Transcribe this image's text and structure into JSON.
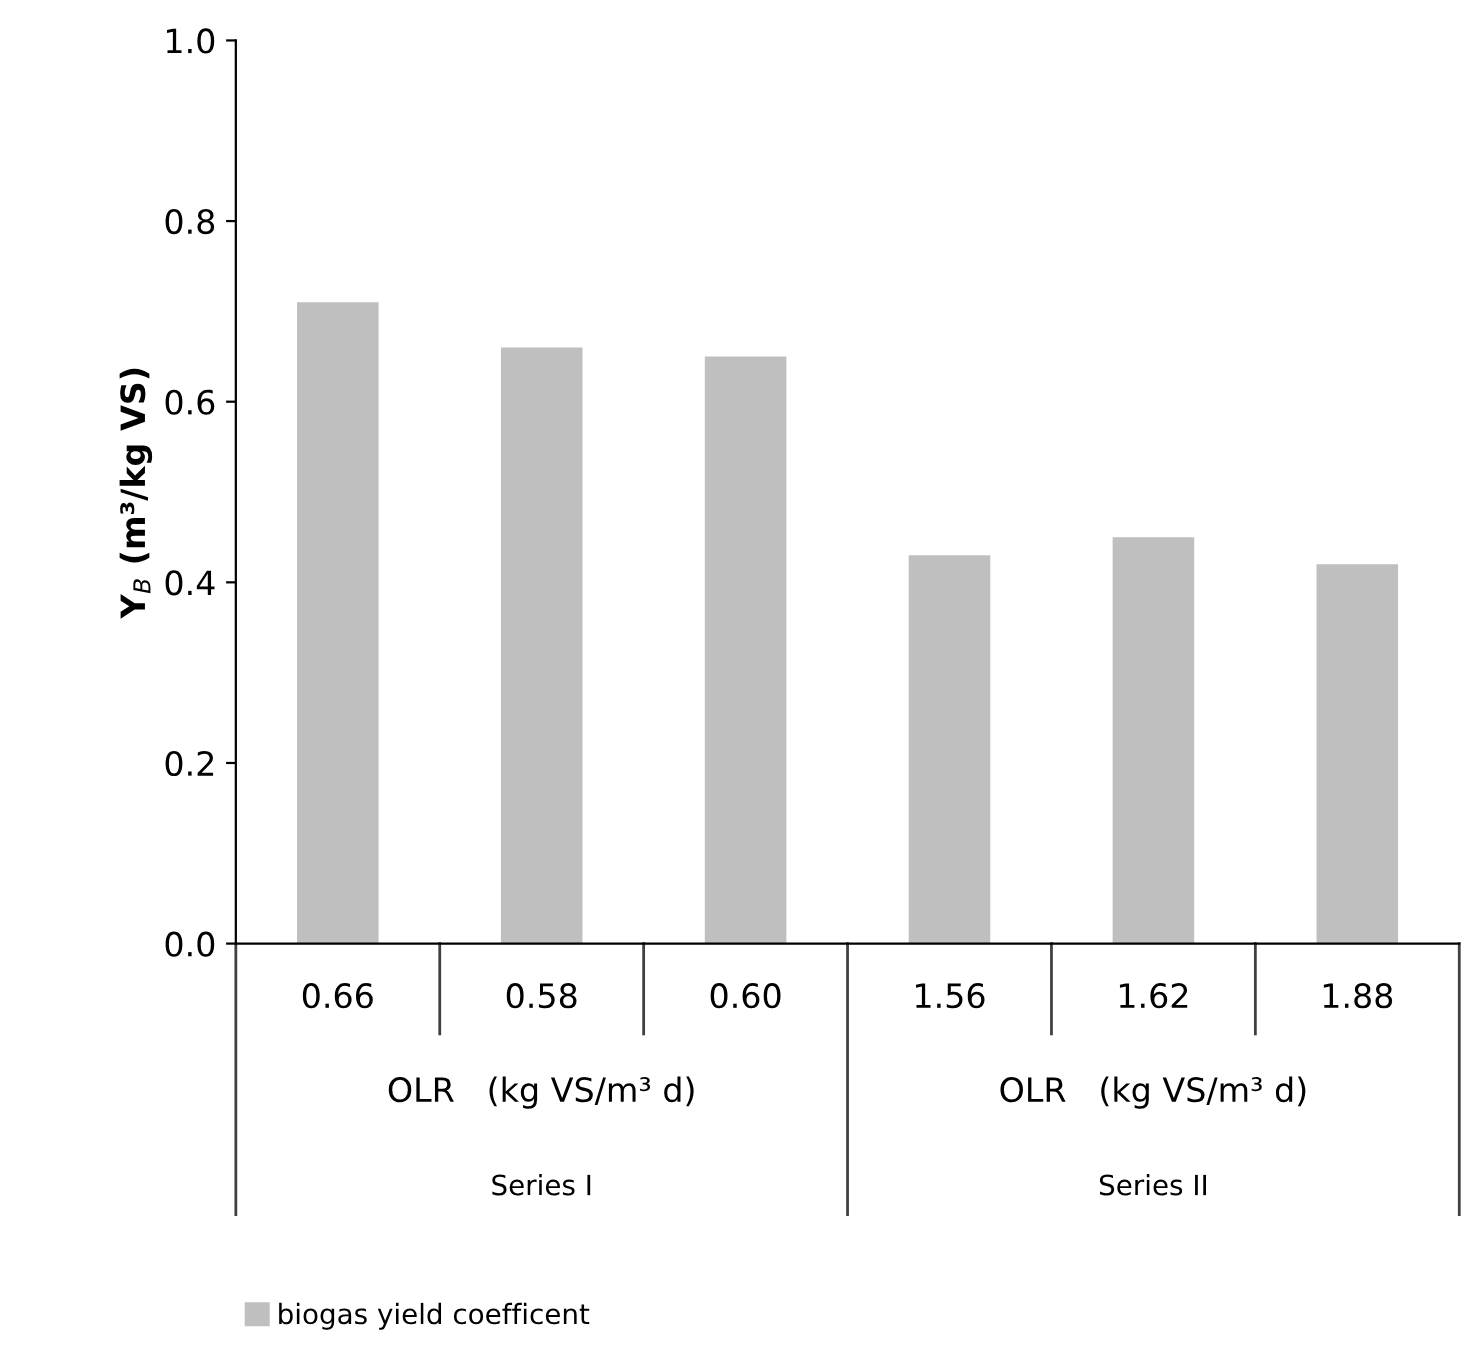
{
  "chart_data": {
    "type": "bar",
    "ylabel": "Y$_{B}$ (m³/kg VS)",
    "categories": [
      "0.66",
      "0.58",
      "0.60",
      "1.56",
      "1.62",
      "1.88"
    ],
    "series": [
      {
        "name": "biogas yield coefficent",
        "color": "#bfbfbf",
        "values": [
          0.71,
          0.66,
          0.65,
          0.43,
          0.45,
          0.42
        ]
      }
    ],
    "ylim": [
      0,
      1.0
    ],
    "yticks": [
      {
        "value": 0,
        "label": "0.0"
      },
      0.2,
      0.4,
      0.6,
      0.8,
      {
        "value": 1,
        "label": "1.0"
      }
    ],
    "annotations": [
      "OLR   (kg VS/m³ d)",
      "Series I",
      "OLR   (kg VS/m³ d)",
      "Series II"
    ],
    "grid": false,
    "legend": "bottom left"
  }
}
